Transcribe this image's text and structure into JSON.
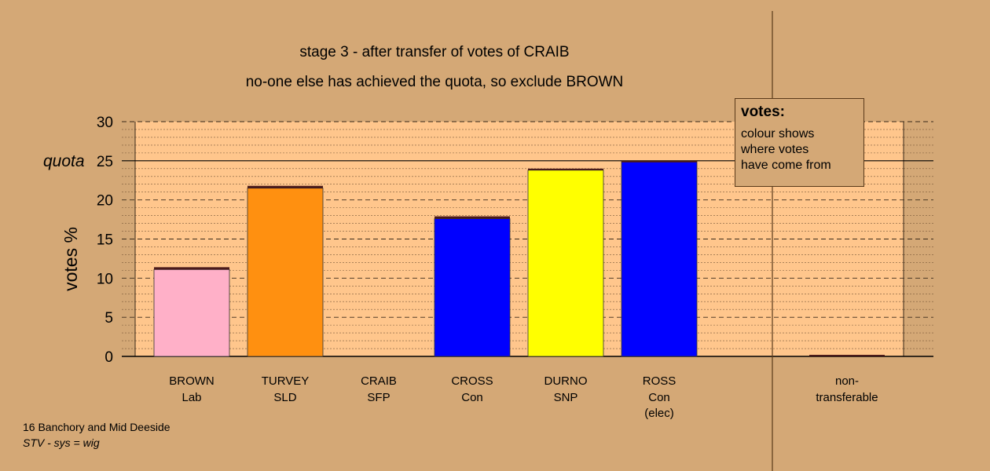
{
  "title_line1": "stage 3 - after transfer of votes of CRAIB",
  "title_line2": "no-one else has achieved the quota, so exclude BROWN",
  "legend": {
    "title": "votes:",
    "lines": [
      "colour shows",
      "where votes",
      "have come from"
    ]
  },
  "footer": {
    "line1": "16 Banchory and Mid Deeside",
    "line2": "STV - sys = wig"
  },
  "colors": {
    "plot_bg": "#FFC68C",
    "page_bg": "#D4A876",
    "transfer_band": "#4A1A1A"
  },
  "chart_data": {
    "type": "bar",
    "ylabel": "votes %",
    "ylim": [
      0,
      30
    ],
    "yticks": [
      0,
      5,
      10,
      15,
      20,
      25,
      30
    ],
    "quota": {
      "value": 25,
      "label": "quota"
    },
    "bars": [
      {
        "line1": "BROWN",
        "line2": "Lab",
        "line3": "",
        "value": 11.1,
        "transfer": 0.3,
        "color": "#FFB0C8"
      },
      {
        "line1": "TURVEY",
        "line2": "SLD",
        "line3": "",
        "value": 21.5,
        "transfer": 0.3,
        "color": "#FF9010"
      },
      {
        "line1": "CRAIB",
        "line2": "SFP",
        "line3": "",
        "value": 0,
        "transfer": 0,
        "color": "#FFC68C"
      },
      {
        "line1": "CROSS",
        "line2": "Con",
        "line3": "",
        "value": 17.6,
        "transfer": 0.3,
        "color": "#0000FF"
      },
      {
        "line1": "DURNO",
        "line2": "SNP",
        "line3": "",
        "value": 23.8,
        "transfer": 0.2,
        "color": "#FFFF00"
      },
      {
        "line1": "ROSS",
        "line2": "Con",
        "line3": "(elec)",
        "value": 24.9,
        "transfer": 0.1,
        "color": "#0000FF"
      }
    ],
    "nontransferable": {
      "line1": "non-",
      "line2": "transferable",
      "value": 0.2,
      "color": "#4A1A1A"
    }
  }
}
